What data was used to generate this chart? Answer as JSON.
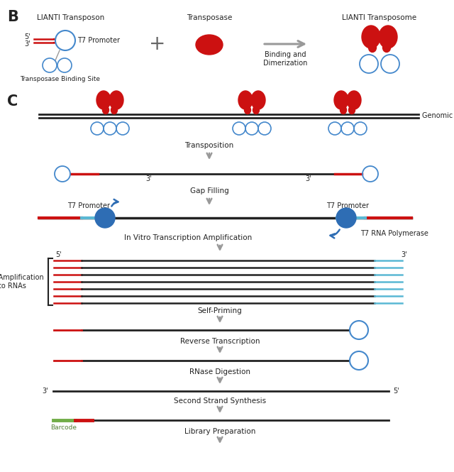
{
  "bg_color": "#ffffff",
  "red": "#cc1111",
  "blue": "#2e6db4",
  "lt_blue": "#5ab8d4",
  "black": "#222222",
  "gray": "#999999",
  "green": "#70ad47",
  "label_transposon": "LIANTI Transposon",
  "label_transposase": "Transposase",
  "label_transposome": "LIANTI Transposome",
  "label_binding": "Binding and\nDimerization",
  "label_t7": "T7 Promoter",
  "label_binding_site": "Transposase Binding Site",
  "label_genomic": "Genomic DNA",
  "label_transposition": "Transposition",
  "label_gap": "Gap Filling",
  "label_t7_left": "T7 Promoter",
  "label_t7_right": "T7 Promoter",
  "label_ivt": "In Vitro Transcription Amplification",
  "label_rna_pol": "T7 RNA Polymerase",
  "label_linear": "Linear Amplification\ninto RNAs",
  "label_self_priming": "Self-Priming",
  "label_rev_trans": "Reverse Transcription",
  "label_rnase": "RNase Digestion",
  "label_second": "Second Strand Synthesis",
  "label_barcode": "Barcode",
  "label_library": "Library Preparation"
}
